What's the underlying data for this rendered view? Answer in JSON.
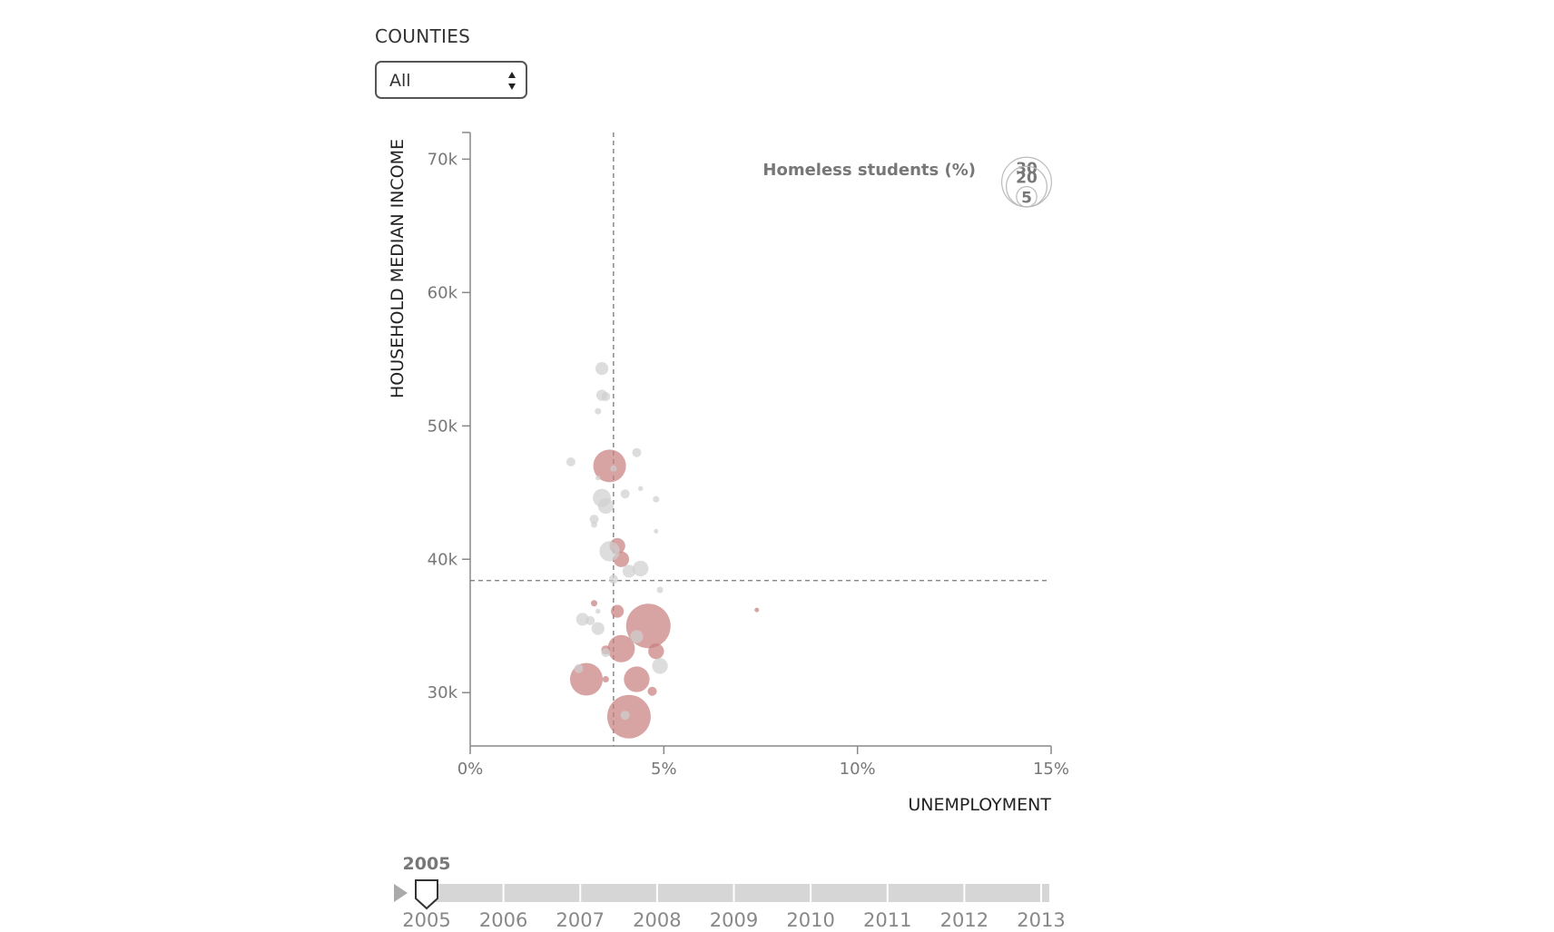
{
  "filter": {
    "label": "COUNTIES",
    "selected": "All"
  },
  "legend": {
    "title": "Homeless students (%)",
    "sizes": [
      30,
      20,
      5
    ]
  },
  "slider": {
    "current_year": "2005",
    "years": [
      "2005",
      "2006",
      "2007",
      "2008",
      "2009",
      "2010",
      "2011",
      "2012",
      "2013"
    ]
  },
  "colors": {
    "highlight": "#c77f80",
    "other": "#d0d0d0",
    "axis": "#888888"
  },
  "chart_data": {
    "type": "scatter",
    "title": "",
    "xlabel": "UNEMPLOYMENT",
    "ylabel": "HOUSEHOLD MEDIAN INCOME",
    "xlim": [
      0,
      15
    ],
    "ylim": [
      26000,
      72000
    ],
    "x_ticks": [
      {
        "value": 0,
        "label": "0%"
      },
      {
        "value": 5,
        "label": "5%"
      },
      {
        "value": 10,
        "label": "10%"
      },
      {
        "value": 15,
        "label": "15%"
      }
    ],
    "y_ticks": [
      {
        "value": 30000,
        "label": "30k"
      },
      {
        "value": 40000,
        "label": "40k"
      },
      {
        "value": 50000,
        "label": "50k"
      },
      {
        "value": 60000,
        "label": "60k"
      },
      {
        "value": 70000,
        "label": "70k"
      }
    ],
    "reference_lines": {
      "x": 3.7,
      "y": 38400
    },
    "size_variable": "Homeless students (%)",
    "series": [
      {
        "name": "highlighted",
        "color": "#c77f80",
        "points": [
          {
            "x": 3.6,
            "y": 47000,
            "size": 13
          },
          {
            "x": 4.6,
            "y": 35000,
            "size": 24
          },
          {
            "x": 3.0,
            "y": 31000,
            "size": 13
          },
          {
            "x": 4.1,
            "y": 28200,
            "size": 23
          },
          {
            "x": 3.9,
            "y": 33300,
            "size": 9
          },
          {
            "x": 4.3,
            "y": 31000,
            "size": 8
          },
          {
            "x": 3.8,
            "y": 41000,
            "size": 3
          },
          {
            "x": 3.9,
            "y": 40000,
            "size": 3
          },
          {
            "x": 3.8,
            "y": 36100,
            "size": 2
          },
          {
            "x": 4.8,
            "y": 33100,
            "size": 3
          },
          {
            "x": 4.7,
            "y": 30100,
            "size": 1
          },
          {
            "x": 3.5,
            "y": 33200,
            "size": 1
          },
          {
            "x": 3.2,
            "y": 36700,
            "size": 0.5
          },
          {
            "x": 3.5,
            "y": 31000,
            "size": 0.5
          },
          {
            "x": 7.4,
            "y": 36200,
            "size": 0.1
          }
        ]
      },
      {
        "name": "other",
        "color": "#d0d0d0",
        "points": [
          {
            "x": 3.4,
            "y": 54300,
            "size": 2
          },
          {
            "x": 3.4,
            "y": 52300,
            "size": 1.5
          },
          {
            "x": 3.5,
            "y": 52200,
            "size": 1
          },
          {
            "x": 3.3,
            "y": 51100,
            "size": 0.5
          },
          {
            "x": 4.3,
            "y": 48000,
            "size": 1
          },
          {
            "x": 2.6,
            "y": 47300,
            "size": 1
          },
          {
            "x": 3.7,
            "y": 46800,
            "size": 0.5
          },
          {
            "x": 3.3,
            "y": 46100,
            "size": 0.3
          },
          {
            "x": 3.4,
            "y": 44600,
            "size": 4
          },
          {
            "x": 4.0,
            "y": 44900,
            "size": 1
          },
          {
            "x": 4.4,
            "y": 45300,
            "size": 0.3
          },
          {
            "x": 4.8,
            "y": 44500,
            "size": 0.5
          },
          {
            "x": 3.5,
            "y": 44000,
            "size": 3
          },
          {
            "x": 3.2,
            "y": 43000,
            "size": 1
          },
          {
            "x": 3.2,
            "y": 42600,
            "size": 0.5
          },
          {
            "x": 4.8,
            "y": 42100,
            "size": 0.2
          },
          {
            "x": 3.6,
            "y": 40600,
            "size": 5
          },
          {
            "x": 4.4,
            "y": 39300,
            "size": 3
          },
          {
            "x": 4.1,
            "y": 39100,
            "size": 2
          },
          {
            "x": 3.7,
            "y": 38500,
            "size": 1
          },
          {
            "x": 4.9,
            "y": 37700,
            "size": 0.5
          },
          {
            "x": 2.9,
            "y": 35500,
            "size": 2
          },
          {
            "x": 3.1,
            "y": 35400,
            "size": 1
          },
          {
            "x": 3.3,
            "y": 34800,
            "size": 2
          },
          {
            "x": 4.3,
            "y": 34200,
            "size": 2
          },
          {
            "x": 4.9,
            "y": 32000,
            "size": 3
          },
          {
            "x": 2.8,
            "y": 31800,
            "size": 1
          },
          {
            "x": 3.5,
            "y": 33000,
            "size": 1
          },
          {
            "x": 4.0,
            "y": 28300,
            "size": 1
          },
          {
            "x": 3.3,
            "y": 36100,
            "size": 0.3
          }
        ]
      }
    ],
    "grid": false,
    "legend_position": "top-right"
  }
}
